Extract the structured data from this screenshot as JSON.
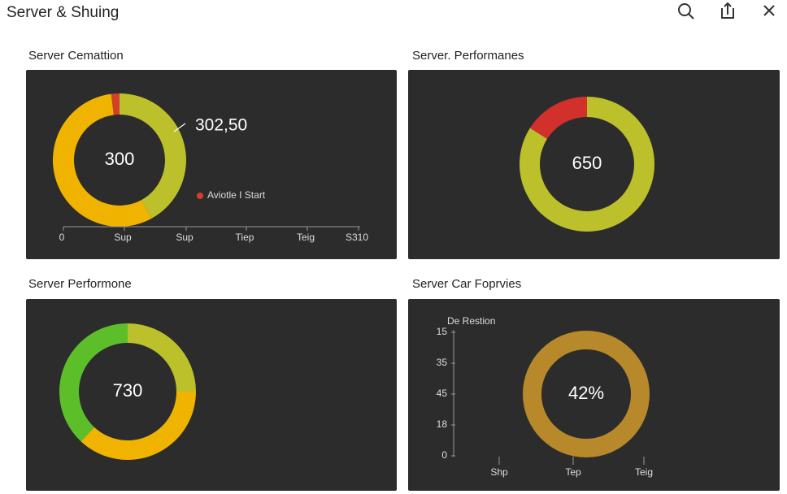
{
  "window": {
    "title": "Server & Shuing"
  },
  "panels": [
    {
      "title": "Server Cemattion",
      "chart": {
        "type": "donut",
        "center_label": "300",
        "callout": "302,50",
        "legend": "Aviotle I Start",
        "slices": [
          {
            "color": "#bcc02a",
            "value": 42
          },
          {
            "color": "#f0b400",
            "value": 56
          },
          {
            "color": "#d2402a",
            "value": 2
          }
        ],
        "axis_labels": [
          "0",
          "Sup",
          "Sup",
          "Tiep",
          "Teig",
          "S310"
        ]
      }
    },
    {
      "title": "Server. Performanes",
      "chart": {
        "type": "donut",
        "center_label": "650",
        "slices": [
          {
            "color": "#bcc02a",
            "value": 84
          },
          {
            "color": "#d2302a",
            "value": 16
          }
        ]
      }
    },
    {
      "title": "Server Performone",
      "chart": {
        "type": "donut",
        "center_label": "730",
        "slices": [
          {
            "color": "#bcc02a",
            "value": 25
          },
          {
            "color": "#f0b400",
            "value": 37
          },
          {
            "color": "#5cbf2a",
            "value": 38
          }
        ]
      }
    },
    {
      "title": "Server Car Foprvies",
      "chart": {
        "type": "donut",
        "center_label": "42%",
        "axis_title": "De Restion",
        "slices": [
          {
            "color": "#b8892a",
            "value": 100
          }
        ],
        "y_labels": [
          "15",
          "35",
          "45",
          "18",
          "0"
        ],
        "x_labels": [
          "Shp",
          "Tep",
          "Teig"
        ]
      }
    }
  ]
}
